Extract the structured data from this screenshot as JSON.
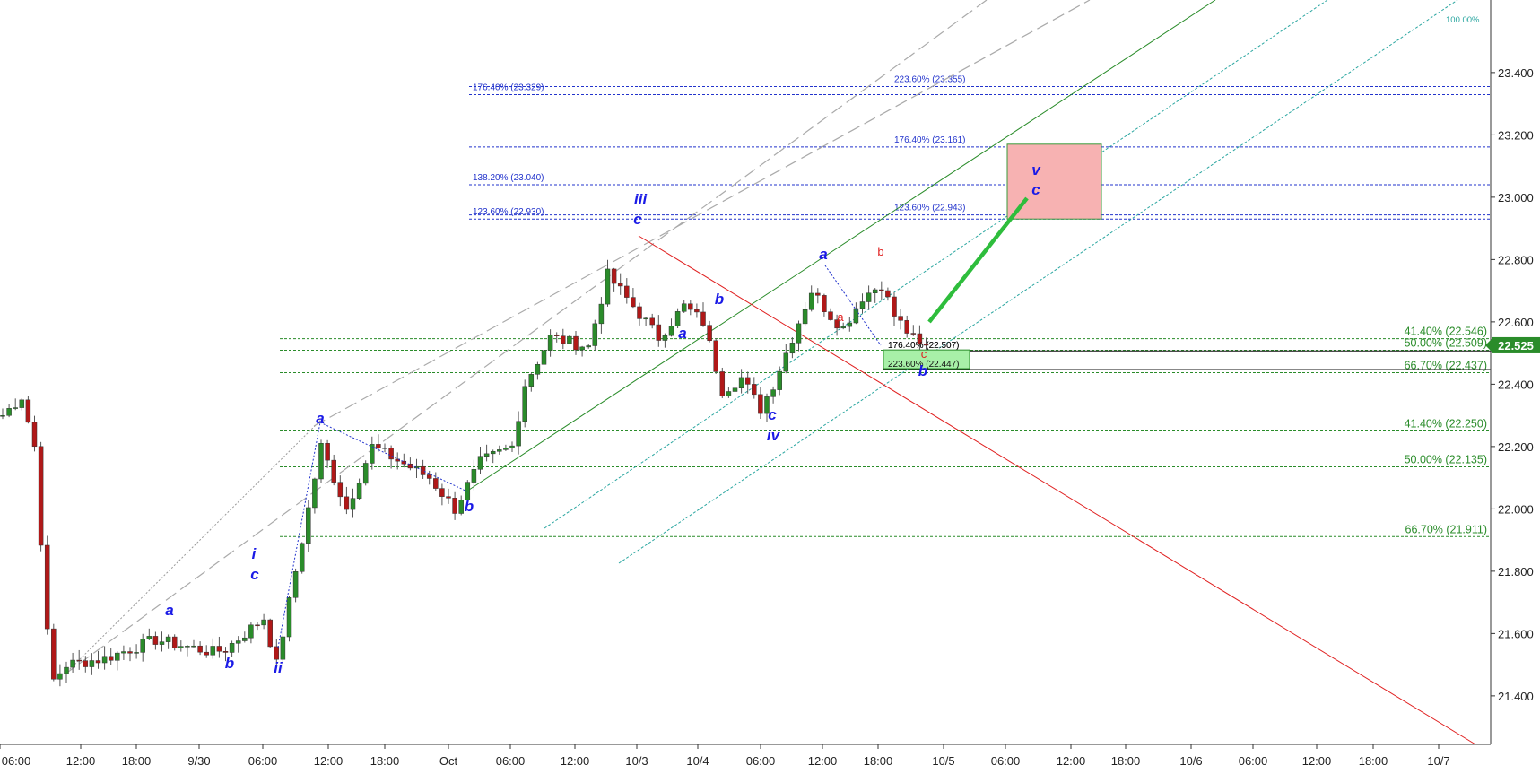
{
  "chart_data": {
    "type": "candlestick",
    "title": "",
    "xlabel": "",
    "ylabel": "",
    "ylim": [
      21.2,
      23.55
    ],
    "grid": false,
    "legend": "none",
    "y_ticks": [
      "23.400",
      "23.200",
      "23.000",
      "22.800",
      "22.600",
      "22.400",
      "22.200",
      "22.000",
      "21.800",
      "21.600",
      "21.400"
    ],
    "x_ticks": [
      "06:00",
      "12:00",
      "18:00",
      "9/30",
      "06:00",
      "12:00",
      "18:00",
      "Oct",
      "06:00",
      "12:00",
      "10/3",
      "10/4",
      "06:00",
      "12:00",
      "18:00",
      "10/5",
      "06:00",
      "12:00",
      "18:00",
      "10/6",
      "06:00",
      "12:00",
      "18:00",
      "10/7"
    ],
    "current_price": {
      "value": 22.525,
      "label": "22.525"
    },
    "price_anchors": [
      [
        0,
        22.3
      ],
      [
        3,
        22.36
      ],
      [
        5,
        22.2
      ],
      [
        6,
        21.9
      ],
      [
        7,
        21.6
      ],
      [
        8,
        21.45
      ],
      [
        10,
        21.5
      ],
      [
        16,
        21.52
      ],
      [
        24,
        21.58
      ],
      [
        33,
        21.54
      ],
      [
        35,
        21.55
      ],
      [
        41,
        21.65
      ],
      [
        43,
        21.5
      ],
      [
        47,
        21.9
      ],
      [
        50,
        22.2
      ],
      [
        54,
        22.0
      ],
      [
        58,
        22.2
      ],
      [
        67,
        22.1
      ],
      [
        71,
        22.0
      ],
      [
        75,
        22.15
      ],
      [
        80,
        22.2
      ],
      [
        82,
        22.4
      ],
      [
        86,
        22.55
      ],
      [
        92,
        22.52
      ],
      [
        95,
        22.75
      ],
      [
        99,
        22.65
      ],
      [
        103,
        22.55
      ],
      [
        107,
        22.65
      ],
      [
        110,
        22.6
      ],
      [
        113,
        22.38
      ],
      [
        116,
        22.42
      ],
      [
        119,
        22.32
      ],
      [
        121,
        22.4
      ],
      [
        124,
        22.55
      ],
      [
        127,
        22.7
      ],
      [
        130,
        22.62
      ],
      [
        132,
        22.58
      ],
      [
        135,
        22.68
      ],
      [
        138,
        22.72
      ],
      [
        140,
        22.62
      ],
      [
        144,
        22.52
      ],
      [
        145,
        22.525
      ]
    ],
    "annotations": {
      "fib_levels": [
        {
          "value": 23.329,
          "label": "176.40% (23.329)",
          "group": "blue-left"
        },
        {
          "value": 23.04,
          "label": "138.20% (23.040)",
          "group": "blue-left"
        },
        {
          "value": 22.93,
          "label": "123.60% (22.930)",
          "group": "blue-left"
        },
        {
          "value": 23.355,
          "label": "223.60% (23.355)",
          "group": "blue-right"
        },
        {
          "value": 23.161,
          "label": "176.40% (23.161)",
          "group": "blue-right"
        },
        {
          "value": 22.943,
          "label": "123.60% (22.943)",
          "group": "blue-right"
        },
        {
          "value": 22.546,
          "label": "41.40% (22.546)",
          "group": "green"
        },
        {
          "value": 22.509,
          "label": "50.00% (22.509)",
          "group": "green"
        },
        {
          "value": 22.437,
          "label": "66.70% (22.437)",
          "group": "green"
        },
        {
          "value": 22.25,
          "label": "41.40% (22.250)",
          "group": "green"
        },
        {
          "value": 22.135,
          "label": "50.00% (22.135)",
          "group": "green"
        },
        {
          "value": 21.911,
          "label": "66.70% (21.911)",
          "group": "green"
        },
        {
          "value": 22.507,
          "label": "176.40% (22.507)",
          "group": "black"
        },
        {
          "value": 22.447,
          "label": "223.60% (22.447)",
          "group": "black"
        }
      ],
      "channel_label": "100.00%",
      "target_zone": {
        "low": 22.93,
        "high": 23.17
      },
      "support_zone": {
        "low": 22.45,
        "high": 22.51
      },
      "wave_labels": [
        {
          "text": "a",
          "color": "blue"
        },
        {
          "text": "b",
          "color": "blue"
        },
        {
          "text": "i",
          "color": "blue"
        },
        {
          "text": "c",
          "color": "blue"
        },
        {
          "text": "ii",
          "color": "blue"
        },
        {
          "text": "a",
          "color": "blue"
        },
        {
          "text": "b",
          "color": "blue"
        },
        {
          "text": "iii",
          "color": "blue"
        },
        {
          "text": "c",
          "color": "blue"
        },
        {
          "text": "a",
          "color": "blue"
        },
        {
          "text": "b",
          "color": "blue"
        },
        {
          "text": "c",
          "color": "blue"
        },
        {
          "text": "iv",
          "color": "blue"
        },
        {
          "text": "a",
          "color": "blue"
        },
        {
          "text": "b",
          "color": "red"
        },
        {
          "text": "a",
          "color": "red"
        },
        {
          "text": "c",
          "color": "red"
        },
        {
          "text": "b",
          "color": "blue"
        },
        {
          "text": "v",
          "color": "blue"
        },
        {
          "text": "c",
          "color": "blue"
        }
      ]
    }
  },
  "colors": {
    "up": "#2a8c2a",
    "down": "#b01818",
    "fib_blue": "#2233cc",
    "fib_green": "#2a8c2a",
    "channel_teal": "#2aa6a0",
    "trend_red": "#e02020",
    "projection_green": "#2ebd3c",
    "target_fill": "#f7b2b2",
    "support_fill": "#a8f0a8",
    "price_tag": "#2a8c2a"
  }
}
